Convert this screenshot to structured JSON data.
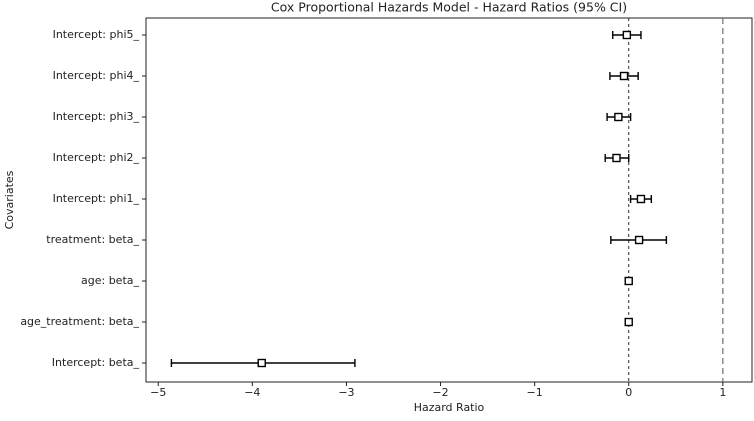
{
  "chart_data": {
    "type": "forest",
    "title": "Cox Proportional Hazards Model - Hazard Ratios (95% CI)",
    "x_label": "Hazard Ratio",
    "y_label": "Covariates",
    "categories": [
      "Intercept: phi5_",
      "Intercept: phi4_",
      "Intercept: phi3_",
      "Intercept: phi2_",
      "Intercept: phi1_",
      "treatment: beta_",
      "age: beta_",
      "age_treatment: beta_",
      "Intercept: beta_"
    ],
    "values": [
      -0.02,
      -0.05,
      -0.11,
      -0.13,
      0.13,
      0.11,
      0.0,
      0.0,
      -3.9
    ],
    "lower": [
      -0.17,
      -0.2,
      -0.23,
      -0.25,
      0.02,
      -0.19,
      -0.01,
      -0.01,
      -4.86
    ],
    "upper": [
      0.13,
      0.1,
      0.02,
      0.0,
      0.24,
      0.4,
      0.01,
      0.01,
      -2.91
    ],
    "color": "#000000",
    "reference_lines": [
      0,
      1
    ],
    "xlim": [
      -5.13,
      1.31
    ],
    "xticks": [
      {
        "value": -5,
        "label": "−5"
      },
      {
        "value": -4,
        "label": "−4"
      },
      {
        "value": -3,
        "label": "−3"
      },
      {
        "value": -2,
        "label": "−2"
      },
      {
        "value": -1,
        "label": "−1"
      },
      0,
      1
    ]
  }
}
